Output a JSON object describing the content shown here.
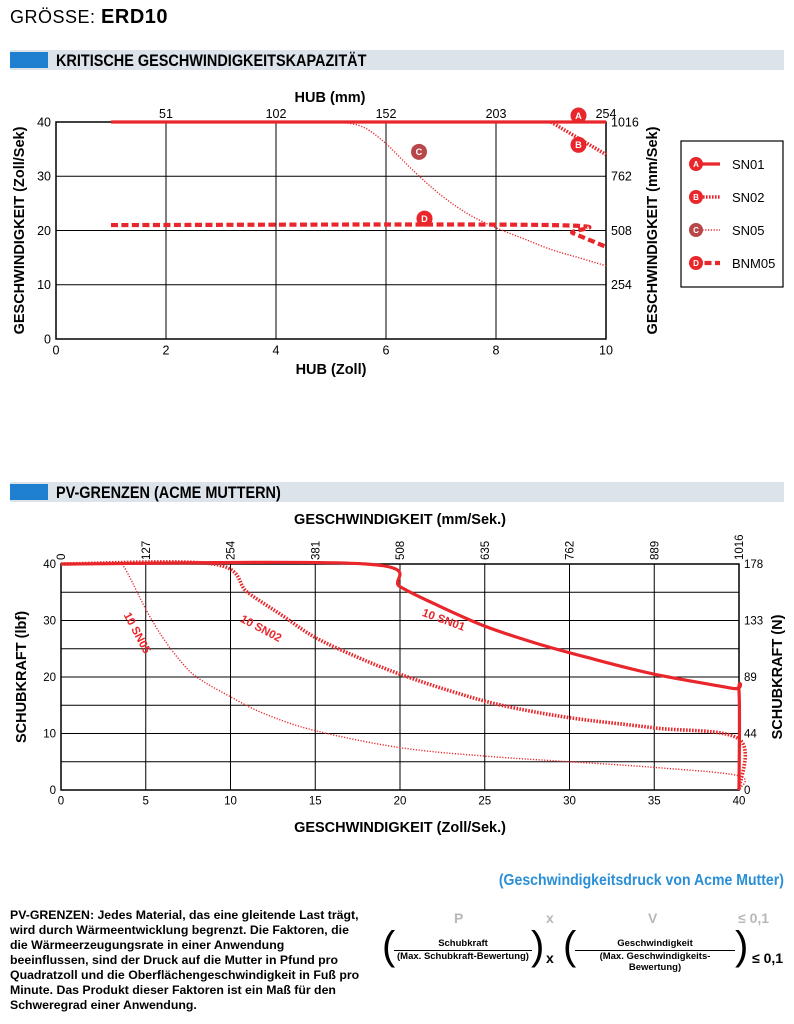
{
  "header": {
    "size_prefix": "GRÖSSE:",
    "size_value": "ERD10"
  },
  "sections": {
    "critical_speed_title": "KRITISCHE GESCHWINDIGKEITSKAPAZITÄT",
    "pv_title": "PV-GRENZEN (ACME MUTTERN)"
  },
  "colors": {
    "accent_blue": "#1f7fd0",
    "section_bg": "#dde3ea",
    "curve_red": "#e8262b",
    "marker_c": "#b8474a",
    "subtitle_blue": "#2a8fd6"
  },
  "chart_data": [
    {
      "type": "line",
      "xlabel": "HUB (Zoll)",
      "x2label": "HUB (mm)",
      "ylabel": "GESCHWINDIGKEIT (Zoll/Sek)",
      "y2label": "GESCHWINDIGKEIT (mm/Sek)",
      "xlim": [
        0,
        10
      ],
      "ylim": [
        0,
        40
      ],
      "x_ticks": [
        "0",
        "2",
        "4",
        "6",
        "8",
        "10"
      ],
      "x_tick_values": [
        0,
        2,
        4,
        6,
        8,
        10
      ],
      "y_ticks": [
        "0",
        "10",
        "20",
        "30",
        "40"
      ],
      "y_tick_values": [
        0,
        10,
        20,
        30,
        40
      ],
      "x2_ticks": [
        "51",
        "102",
        "152",
        "203",
        "254"
      ],
      "x2_tick_values": [
        2,
        4,
        6,
        8,
        10
      ],
      "y2_ticks": [
        "254",
        "508",
        "762",
        "1016"
      ],
      "y2_tick_values": [
        10,
        20,
        30,
        40
      ],
      "grid": true,
      "legend_position": "right",
      "series": [
        {
          "name": "SN01",
          "marker": "A",
          "style": "solid",
          "x": [
            1,
            10
          ],
          "y": [
            40,
            40
          ],
          "marker_at": [
            9.5,
            41.2
          ]
        },
        {
          "name": "SN02",
          "marker": "B",
          "style": "dense-dotted",
          "x": [
            9.0,
            10.0
          ],
          "y": [
            40,
            34
          ],
          "marker_at": [
            9.5,
            35.8
          ]
        },
        {
          "name": "SN05",
          "marker": "C",
          "style": "fine-dotted",
          "x": [
            5.2,
            5.6,
            6.0,
            6.5,
            7.0,
            7.5,
            8.0,
            8.5,
            9.0,
            9.5,
            10.0
          ],
          "y": [
            40,
            39,
            36,
            31,
            26.5,
            23,
            20.5,
            18.5,
            16.5,
            15,
            13.5
          ],
          "marker_at": [
            6.6,
            34.5
          ]
        },
        {
          "name": "BNM05",
          "marker": "D",
          "style": "dashed",
          "x": [
            1,
            9.0,
            9.4,
            10.0
          ],
          "y": [
            21,
            21,
            19.5,
            17
          ],
          "marker_at": [
            6.7,
            22.2
          ]
        }
      ]
    },
    {
      "type": "line",
      "x2label": "GESCHWINDIGKEIT (mm/Sek.)",
      "xlabel": "GESCHWINDIGKEIT (Zoll/Sek.)",
      "ylabel": "SCHUBKRAFT (lbf)",
      "y2label": "SCHUBKRAFT (N)",
      "xlim": [
        0,
        40
      ],
      "ylim": [
        0,
        40
      ],
      "x_ticks": [
        "0",
        "5",
        "10",
        "15",
        "20",
        "25",
        "30",
        "35",
        "40"
      ],
      "x_tick_values": [
        0,
        5,
        10,
        15,
        20,
        25,
        30,
        35,
        40
      ],
      "y_ticks": [
        "0",
        "10",
        "20",
        "30",
        "40"
      ],
      "y_tick_values": [
        0,
        10,
        20,
        30,
        40
      ],
      "x2_ticks": [
        "0",
        "127",
        "254",
        "381",
        "508",
        "635",
        "762",
        "889",
        "1016"
      ],
      "x2_tick_values": [
        0,
        5,
        10,
        15,
        20,
        25,
        30,
        35,
        40
      ],
      "y2_ticks": [
        "0",
        "44",
        "89",
        "133",
        "178"
      ],
      "y2_tick_values": [
        0,
        10,
        20,
        30,
        40
      ],
      "grid": true,
      "series": [
        {
          "name": "10 SN01",
          "style": "solid",
          "x": [
            0,
            18,
            20,
            22,
            25,
            28,
            31,
            35,
            39.6,
            40,
            40
          ],
          "y": [
            40,
            40,
            36,
            33,
            29,
            26,
            23.5,
            20.5,
            18,
            17.5,
            0
          ],
          "label_at": [
            22.5,
            29.5
          ],
          "label_angle": 20
        },
        {
          "name": "10 SN02",
          "style": "dense-dotted",
          "x": [
            0,
            9,
            11,
            13,
            15,
            17.5,
            20,
            23,
            26,
            30,
            35,
            40,
            40
          ],
          "y": [
            40,
            40,
            35,
            31,
            27,
            23.5,
            20.5,
            17.5,
            15,
            12.8,
            11,
            9,
            0
          ],
          "label_at": [
            11.7,
            28.0
          ],
          "label_angle": 28
        },
        {
          "name": "10 SN05",
          "style": "fine-dotted",
          "x": [
            3.6,
            4,
            5,
            6,
            7,
            8,
            10,
            12,
            15,
            20,
            25,
            30,
            35,
            40,
            40
          ],
          "y": [
            40,
            38,
            32,
            27,
            23,
            20,
            16.5,
            13.5,
            10.5,
            7.5,
            6,
            5,
            4,
            2.5,
            0
          ],
          "label_at": [
            4.3,
            27.5
          ],
          "label_angle": 62
        }
      ]
    }
  ],
  "legend": {
    "items": [
      {
        "marker": "A",
        "label": "SN01"
      },
      {
        "marker": "B",
        "label": "SN02"
      },
      {
        "marker": "C",
        "label": "SN05"
      },
      {
        "marker": "D",
        "label": "BNM05"
      }
    ]
  },
  "pv_subtitle": "(Geschwindigkeitsdruck von Acme Mutter)",
  "pv_description": "PV-GRENZEN: Jedes Material, das eine gleitende Last trägt, wird durch Wärmeentwicklung begrenzt. Die Faktoren, die die Wärmeerzeugungsrate in einer Anwendung beeinflussen, sind der Druck auf die Mutter in Pfund pro Quadratzoll und die Oberflächengeschwindigkeit in Fuß pro Minute. Das Produkt dieser Faktoren ist ein Maß für den Schweregrad einer Anwendung.",
  "formula": {
    "p": "P",
    "x1": "x",
    "v": "V",
    "limit_top": "≤ 0,1",
    "thrust_num": "Schubkraft",
    "thrust_den": "(Max. Schubkraft-Bewertung)",
    "speed_num": "Geschwindigkeit",
    "speed_den": "(Max. Geschwindigkeits-Bewertung)",
    "x2": "x",
    "limit_bottom": "≤ 0,1",
    "paren_open": "(",
    "paren_close": ")"
  }
}
